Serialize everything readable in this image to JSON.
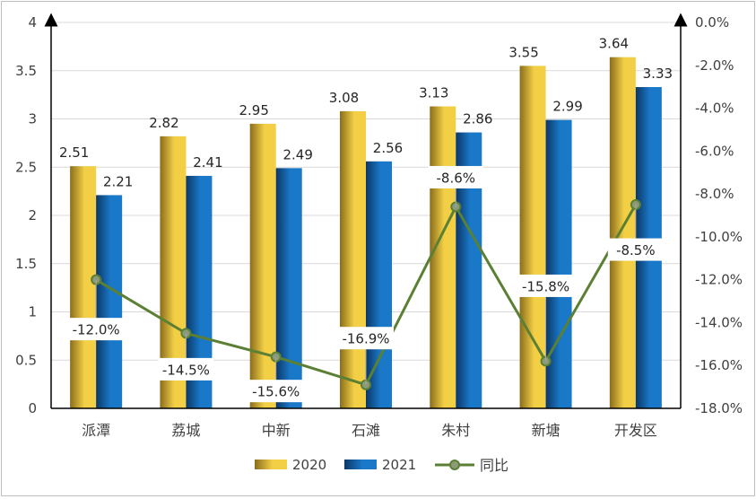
{
  "chart_data": {
    "type": "bar",
    "categories": [
      "派潭",
      "荔城",
      "中新",
      "石滩",
      "朱村",
      "新塘",
      "开发区"
    ],
    "series": [
      {
        "name": "2020",
        "values": [
          2.51,
          2.82,
          2.95,
          3.08,
          3.13,
          3.55,
          3.64
        ],
        "axis": "left",
        "color_dark": "#8a6d1c",
        "color_light": "#f2cf45"
      },
      {
        "name": "2021",
        "values": [
          2.21,
          2.41,
          2.49,
          2.56,
          2.86,
          2.99,
          3.33
        ],
        "axis": "left",
        "color_dark": "#0b3766",
        "color_light": "#1a78c8"
      },
      {
        "name": "同比",
        "type": "line",
        "values": [
          -12.0,
          -14.5,
          -15.6,
          -16.9,
          -8.6,
          -15.8,
          -8.5
        ],
        "axis": "right",
        "color": "#5b7f33"
      }
    ],
    "bar_labels": {
      "2020": [
        "2.51",
        "2.82",
        "2.95",
        "3.08",
        "3.13",
        "3.55",
        "3.64"
      ],
      "2021": [
        "2.21",
        "2.41",
        "2.49",
        "2.56",
        "2.86",
        "2.99",
        "3.33"
      ]
    },
    "line_labels": [
      "-12.0%",
      "-14.5%",
      "-15.6%",
      "-16.9%",
      "-8.6%",
      "-15.8%",
      "-8.5%"
    ],
    "left_axis": {
      "min": 0,
      "max": 4,
      "ticks": [
        "0",
        "0.5",
        "1",
        "1.5",
        "2",
        "2.5",
        "3",
        "3.5",
        "4"
      ]
    },
    "right_axis": {
      "min": -18,
      "max": 0,
      "ticks": [
        "0.0%",
        "-2.0%",
        "-4.0%",
        "-6.0%",
        "-8.0%",
        "-10.0%",
        "-12.0%",
        "-14.0%",
        "-16.0%",
        "-18.0%"
      ]
    },
    "legend": {
      "position": "bottom",
      "items": [
        "2020",
        "2021",
        "同比"
      ]
    },
    "grid": true
  }
}
